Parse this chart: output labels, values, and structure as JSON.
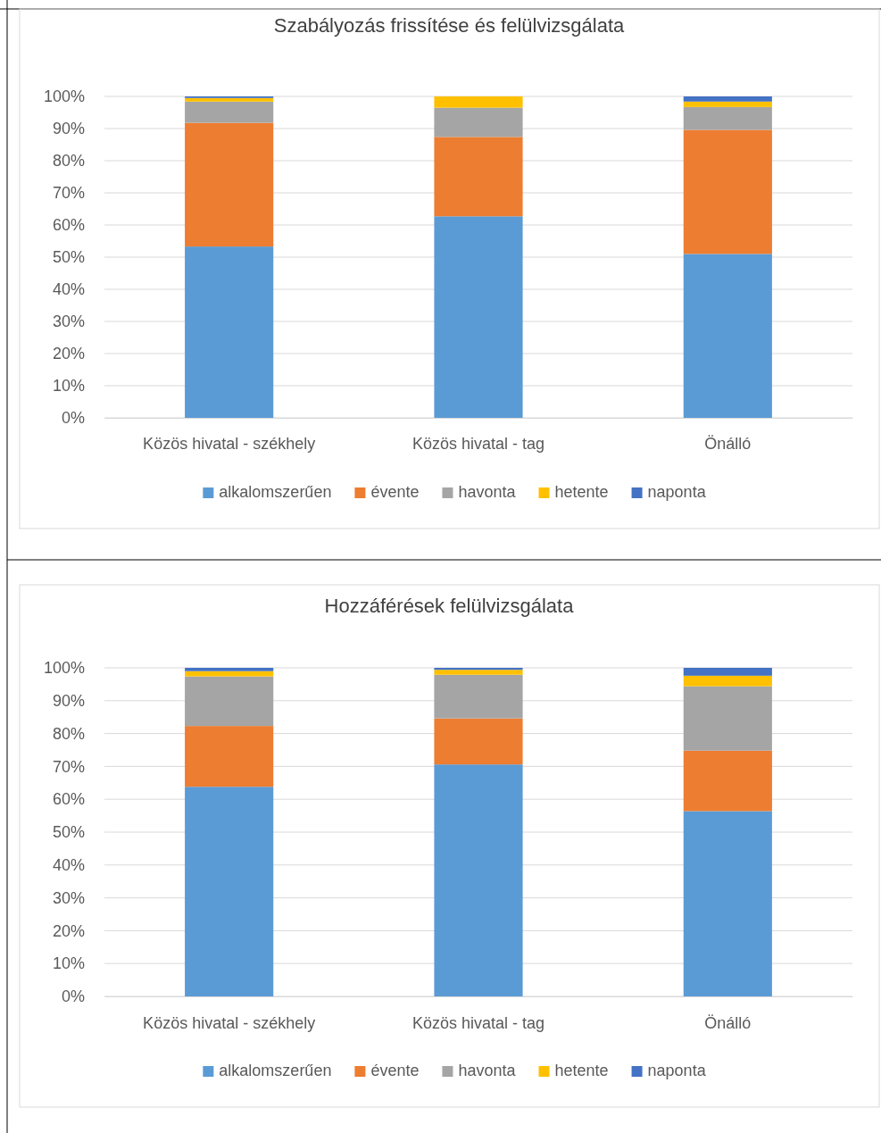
{
  "chart_data": [
    {
      "type": "bar",
      "stacked": true,
      "title": "Szabályozás frissítése és felülvizsgálata",
      "categories": [
        "Közös hivatal - székhely",
        "Közös hivatal - tag",
        "Önálló"
      ],
      "series": [
        {
          "name": "alkalomszerűen",
          "color": "#5b9bd5",
          "values": [
            53.3,
            62.7,
            51.0
          ]
        },
        {
          "name": "évente",
          "color": "#ed7d31",
          "values": [
            38.5,
            24.7,
            38.6
          ]
        },
        {
          "name": "havonta",
          "color": "#a5a5a5",
          "values": [
            6.6,
            9.1,
            7.1
          ]
        },
        {
          "name": "hetente",
          "color": "#ffc000",
          "values": [
            1.1,
            3.5,
            1.7
          ]
        },
        {
          "name": "naponta",
          "color": "#4472c4",
          "values": [
            0.5,
            0,
            1.6
          ]
        }
      ],
      "ylim": [
        0,
        100
      ],
      "yticks": [
        {
          "value": 0,
          "label": "0%"
        },
        {
          "value": 10,
          "label": "10%"
        },
        {
          "value": 20,
          "label": "20%"
        },
        {
          "value": 30,
          "label": "30%"
        },
        {
          "value": 40,
          "label": "40%"
        },
        {
          "value": 50,
          "label": "50%"
        },
        {
          "value": 60,
          "label": "60%"
        },
        {
          "value": 70,
          "label": "70%"
        },
        {
          "value": 80,
          "label": "80%"
        },
        {
          "value": 90,
          "label": "90%"
        },
        {
          "value": 100,
          "label": "100%"
        }
      ],
      "grid": "y",
      "legend": "bottom"
    },
    {
      "type": "bar",
      "stacked": true,
      "title": "Hozzáférések felülvizsgálata",
      "categories": [
        "Közös hivatal - székhely",
        "Közös hivatal - tag",
        "Önálló"
      ],
      "series": [
        {
          "name": "alkalomszerűen",
          "color": "#5b9bd5",
          "values": [
            63.8,
            70.6,
            56.4
          ]
        },
        {
          "name": "évente",
          "color": "#ed7d31",
          "values": [
            18.5,
            14.0,
            18.4
          ]
        },
        {
          "name": "havonta",
          "color": "#a5a5a5",
          "values": [
            15.1,
            13.3,
            19.6
          ]
        },
        {
          "name": "hetente",
          "color": "#ffc000",
          "values": [
            1.6,
            1.5,
            3.2
          ]
        },
        {
          "name": "naponta",
          "color": "#4472c4",
          "values": [
            1.0,
            0.6,
            2.4
          ]
        }
      ],
      "ylim": [
        0,
        100
      ],
      "yticks": [
        {
          "value": 0,
          "label": "0%"
        },
        {
          "value": 10,
          "label": "10%"
        },
        {
          "value": 20,
          "label": "20%"
        },
        {
          "value": 30,
          "label": "30%"
        },
        {
          "value": 40,
          "label": "40%"
        },
        {
          "value": 50,
          "label": "50%"
        },
        {
          "value": 60,
          "label": "60%"
        },
        {
          "value": 70,
          "label": "70%"
        },
        {
          "value": 80,
          "label": "80%"
        },
        {
          "value": 90,
          "label": "90%"
        },
        {
          "value": 100,
          "label": "100%"
        }
      ],
      "grid": "y",
      "legend": "bottom"
    }
  ]
}
